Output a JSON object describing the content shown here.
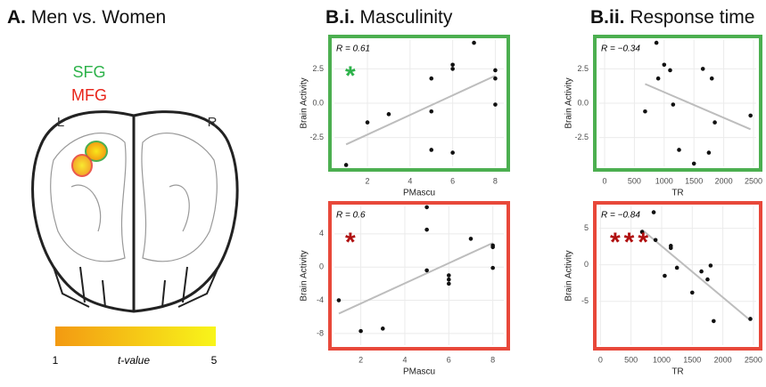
{
  "panel_a": {
    "title_label": "A.",
    "title": "Men vs. Women",
    "regions": [
      "SFG",
      "MFG"
    ],
    "sides": [
      "L",
      "R"
    ],
    "colorbar": {
      "ticks": [
        1,
        5
      ],
      "label": "t-value"
    }
  },
  "chart_data": [
    {
      "type": "scatter",
      "title_label": "B.i.",
      "title": "Masculinity",
      "annotation": "R = 0.61",
      "marker": "*",
      "frame_color": "#4caf50",
      "marker_color": "#2db24a",
      "x_label": "PMascu",
      "y_label": "Brain Activity",
      "x": [
        1,
        2,
        3,
        5,
        5,
        5,
        6,
        6,
        6,
        7,
        8,
        8,
        8
      ],
      "values": [
        -4.5,
        -1.4,
        -0.8,
        1.8,
        -0.6,
        -3.4,
        2.8,
        2.5,
        -3.6,
        4.4,
        2.4,
        1.8,
        -0.1
      ],
      "fit": {
        "x": [
          1,
          8
        ],
        "y": [
          -3.0,
          2.0
        ]
      },
      "xlim": [
        0.45,
        8.4
      ],
      "xticks": [
        2,
        4,
        6,
        8
      ],
      "ylim": [
        -4.6,
        4.6
      ],
      "yticks": [
        {
          "value": -2.5,
          "label": "-2.5"
        },
        {
          "value": 0,
          "label": "0.0"
        },
        2.5
      ],
      "grid": true
    },
    {
      "type": "scatter",
      "annotation": "R = 0.6",
      "marker": "*",
      "frame_color": "#e8483a",
      "marker_color": "#b01010",
      "x_label": "PMascu",
      "y_label": "Brain Activity",
      "x": [
        1,
        2,
        3,
        5,
        5,
        5,
        6,
        6,
        6,
        7,
        8,
        8,
        8
      ],
      "values": [
        -4,
        -7.7,
        -7.4,
        7.2,
        4.5,
        -0.4,
        -1,
        -1.5,
        -2,
        3.4,
        2.6,
        2.4,
        -0.1
      ],
      "fit": {
        "x": [
          1,
          8
        ],
        "y": [
          -5.6,
          2.9
        ]
      },
      "xlim": [
        0.8,
        8.5
      ],
      "xticks": [
        2,
        4,
        6,
        8
      ],
      "ylim": [
        -9.4,
        7.3
      ],
      "yticks": [
        -8,
        -4,
        0,
        4
      ],
      "grid": true
    },
    {
      "type": "scatter",
      "title_label": "B.ii.",
      "title": "Response time",
      "annotation": "R = −0.34",
      "frame_color": "#4caf50",
      "x_label": "TR",
      "y_label": "Brain Activity",
      "x": [
        680,
        870,
        900,
        1000,
        1100,
        1150,
        1250,
        1500,
        1650,
        1750,
        1800,
        1850,
        2450
      ],
      "values": [
        -0.6,
        4.4,
        1.8,
        2.8,
        2.4,
        -0.1,
        -3.4,
        -4.4,
        2.5,
        -3.6,
        1.8,
        -1.4,
        -0.9
      ],
      "fit": {
        "x": [
          680,
          2450
        ],
        "y": [
          1.4,
          -1.9
        ]
      },
      "xlim": [
        -90,
        2545
      ],
      "xticks": [
        0,
        500,
        1000,
        1500,
        2000,
        2500
      ],
      "ylim": [
        -4.6,
        4.6
      ],
      "yticks": [
        {
          "value": -2.5,
          "label": "-2.5"
        },
        {
          "value": 0,
          "label": "0.0"
        },
        2.5
      ],
      "grid": true
    },
    {
      "type": "scatter",
      "annotation": "R = −0.84",
      "marker": "***",
      "frame_color": "#e8483a",
      "marker_color": "#b01010",
      "x_label": "TR",
      "y_label": "Brain Activity",
      "x": [
        680,
        870,
        900,
        1050,
        1150,
        1150,
        1250,
        1500,
        1650,
        1750,
        1800,
        1850,
        2450
      ],
      "values": [
        4.5,
        7.2,
        3.4,
        -1.5,
        2.6,
        2.3,
        -0.4,
        -3.8,
        -0.9,
        -2,
        -0.1,
        -7.7,
        -7.4
      ],
      "fit": {
        "x": [
          680,
          2450
        ],
        "y": [
          4.8,
          -7.6
        ]
      },
      "xlim": [
        -20,
        2545
      ],
      "xticks": [
        0,
        500,
        1000,
        1500,
        2000,
        2500
      ],
      "ylim": [
        -11,
        8
      ],
      "yticks": [
        -5,
        0,
        5
      ],
      "grid": true
    }
  ]
}
